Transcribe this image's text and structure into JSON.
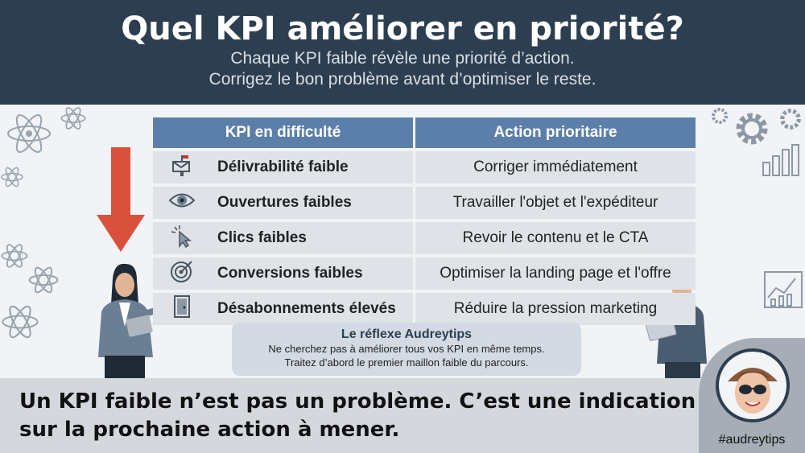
{
  "header": {
    "title": "Quel KPI améliorer en priorité?",
    "subtitle_line1": "Chaque KPI faible révèle une priorité d’action.",
    "subtitle_line2": "Corrigez le bon problème avant d’optimiser le reste."
  },
  "table": {
    "col1_header": "KPI en difficulté",
    "col2_header": "Action prioritaire",
    "rows": [
      {
        "icon": "mailbox-icon",
        "kpi": "Délivrabilité faible",
        "action": "Corriger immédiatement"
      },
      {
        "icon": "eye-icon",
        "kpi": "Ouvertures faibles",
        "action": "Travailler l'objet et l'expéditeur"
      },
      {
        "icon": "cursor-click-icon",
        "kpi": "Clics faibles",
        "action": "Revoir le contenu et le CTA"
      },
      {
        "icon": "target-icon",
        "kpi": "Conversions faibles",
        "action": "Optimiser la landing page et l'offre"
      },
      {
        "icon": "exit-door-icon",
        "kpi": "Désabonnements élevés",
        "action": "Réduire la pression marketing"
      }
    ]
  },
  "reflex": {
    "title": "Le réflexe Audreytips",
    "line1": "Ne cherchez pas à améliorer tous vos KPI en même temps.",
    "line2": "Traitez d’abord le premier maillon faible du parcours."
  },
  "bottom": {
    "line1": "Un KPI faible n’est pas un problème. C’est une indication",
    "line2": "sur la prochaine action à mener."
  },
  "badge": {
    "hashtag": "#audreytips"
  },
  "colors": {
    "header_bg": "#2c3e50",
    "table_header": "#5b7fa8",
    "row_bg": "#dfe3e8",
    "arrow": "#d9513c",
    "bottom_bg": "#d4d8dd"
  }
}
